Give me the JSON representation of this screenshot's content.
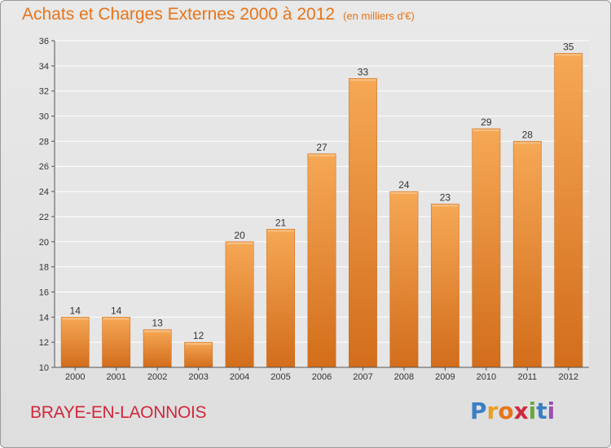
{
  "title": "Achats et Charges Externes 2000 à 2012",
  "unit_note": "(en milliers d'€)",
  "commune": "BRAYE-EN-LAONNOIS",
  "logo": {
    "letters": [
      "P",
      "r",
      "o",
      "x",
      "i",
      "t",
      "i"
    ],
    "colors": [
      "#3a7fc4",
      "#e8a020",
      "#e8741a",
      "#d2283b",
      "#6aa73c",
      "#3a7fc4",
      "#9b4fb0"
    ]
  },
  "colors": {
    "bar_top": "#f6a855",
    "bar_bottom": "#d26d1b",
    "title": "#e8741a",
    "commune": "#d2283b"
  },
  "chart_data": {
    "type": "bar",
    "categories": [
      "2000",
      "2001",
      "2002",
      "2003",
      "2004",
      "2005",
      "2006",
      "2007",
      "2008",
      "2009",
      "2010",
      "2011",
      "2012"
    ],
    "values": [
      14,
      14,
      13,
      12,
      20,
      21,
      27,
      33,
      24,
      23,
      29,
      28,
      35
    ],
    "data_labels": [
      "14",
      "14",
      "13",
      "12",
      "20",
      "21",
      "27",
      "33",
      "24",
      "23",
      "29",
      "28",
      "35"
    ],
    "ylim": [
      10,
      36
    ],
    "yticks": [
      "10",
      "12",
      "14",
      "16",
      "18",
      "20",
      "22",
      "24",
      "26",
      "28",
      "30",
      "32",
      "34",
      "36"
    ],
    "grid": true,
    "legend": "none",
    "xlabel": "",
    "ylabel": ""
  }
}
